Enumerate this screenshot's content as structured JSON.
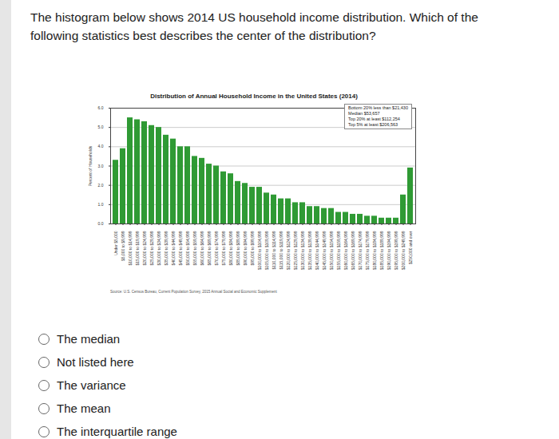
{
  "question": "The histogram below shows 2014 US household income distribution. Which of the following statistics best describes the center of the distribution?",
  "chart_data": {
    "type": "bar",
    "title": "Distribution of Annual Household Income in the United States (2014)",
    "y_label": "Percent of Households",
    "categories": [
      "Under $5,000",
      "$5,000 to $9,999",
      "$10,000 to $14,999",
      "$15,000 to $19,999",
      "$20,000 to $24,999",
      "$25,000 to $29,999",
      "$30,000 to $34,999",
      "$35,000 to $39,999",
      "$40,000 to $44,999",
      "$45,000 to $49,999",
      "$50,000 to $54,999",
      "$55,000 to $59,999",
      "$60,000 to $64,999",
      "$65,000 to $69,999",
      "$70,000 to $74,999",
      "$75,000 to $79,999",
      "$80,000 to $84,999",
      "$85,000 to $89,999",
      "$90,000 to $94,999",
      "$95,000 to $99,999",
      "$100,000 to $104,999",
      "$105,000 to $109,999",
      "$110,000 to $114,999",
      "$115,000 to $119,999",
      "$120,000 to $124,999",
      "$125,000 to $129,999",
      "$130,000 to $134,999",
      "$135,000 to $139,999",
      "$140,000 to $144,999",
      "$145,000 to $149,999",
      "$150,000 to $154,999",
      "$155,000 to $159,999",
      "$160,000 to $164,999",
      "$165,000 to $169,999",
      "$170,000 to $174,999",
      "$175,000 to $179,999",
      "$180,000 to $184,999",
      "$185,000 to $189,999",
      "$190,000 to $194,999",
      "$195,000 to $199,999",
      "$200,000 to $249,999",
      "$250,000 and over"
    ],
    "values": [
      3.3,
      3.9,
      5.5,
      5.4,
      5.3,
      5.1,
      5.0,
      4.6,
      4.4,
      4.0,
      4.0,
      3.5,
      3.4,
      3.1,
      3.0,
      2.7,
      2.6,
      2.2,
      2.1,
      1.9,
      1.9,
      1.6,
      1.5,
      1.3,
      1.3,
      1.1,
      1.1,
      0.9,
      0.9,
      0.8,
      0.8,
      0.6,
      0.6,
      0.5,
      0.5,
      0.4,
      0.4,
      0.3,
      0.3,
      0.3,
      1.5,
      2.9
    ],
    "color": "#2f9a34",
    "ylim": [
      0,
      6
    ],
    "yticks": [
      0,
      1,
      2,
      3,
      4,
      5,
      6
    ],
    "grid": true,
    "annotations": [
      "Bottom 20% less than $21,430",
      "Median $53,657",
      "Top 20% at least $112,254",
      "Top 5% at least $206,563"
    ],
    "source": "Source: U.S. Census Bureau, Current Population Survey, 2015 Annual Social and Economic Supplement"
  },
  "options": [
    "The median",
    "Not listed here",
    "The variance",
    "The mean",
    "The interquartile range"
  ]
}
